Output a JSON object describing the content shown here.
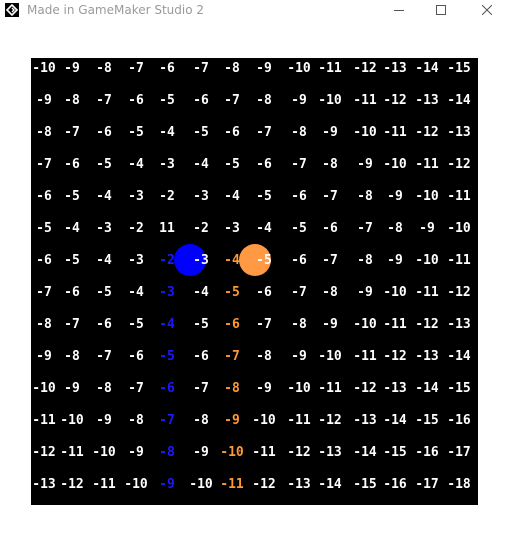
{
  "window": {
    "title": "Made in GameMaker Studio 2",
    "controls": [
      "minimize",
      "maximize",
      "close"
    ]
  },
  "game": {
    "background": "#000000",
    "grid": [
      [
        "-10",
        "-9",
        "-8",
        "-7",
        "-6",
        "-7",
        "-8",
        "-9",
        "-10",
        "-11",
        "-12",
        "-13",
        "-14",
        "-15"
      ],
      [
        "-9",
        "-8",
        "-7",
        "-6",
        "-5",
        "-6",
        "-7",
        "-8",
        "-9",
        "-10",
        "-11",
        "-12",
        "-13",
        "-14"
      ],
      [
        "-8",
        "-7",
        "-6",
        "-5",
        "-4",
        "-5",
        "-6",
        "-7",
        "-8",
        "-9",
        "-10",
        "-11",
        "-12",
        "-13"
      ],
      [
        "-7",
        "-6",
        "-5",
        "-4",
        "-3",
        "-4",
        "-5",
        "-6",
        "-7",
        "-8",
        "-9",
        "-10",
        "-11",
        "-12"
      ],
      [
        "-6",
        "-5",
        "-4",
        "-3",
        "-2",
        "-3",
        "-4",
        "-5",
        "-6",
        "-7",
        "-8",
        "-9",
        "-10",
        "-11"
      ],
      [
        "-5",
        "-4",
        "-3",
        "-2",
        "11",
        "-2",
        "-3",
        "-4",
        "-5",
        "-6",
        "-7",
        "-8",
        "-9",
        "-10"
      ],
      [
        "-6",
        "-5",
        "-4",
        "-3",
        "-2",
        "-3",
        "-4",
        "-5",
        "-6",
        "-7",
        "-8",
        "-9",
        "-10",
        "-11"
      ],
      [
        "-7",
        "-6",
        "-5",
        "-4",
        "-3",
        "-4",
        "-5",
        "-6",
        "-7",
        "-8",
        "-9",
        "-10",
        "-11",
        "-12"
      ],
      [
        "-8",
        "-7",
        "-6",
        "-5",
        "-4",
        "-5",
        "-6",
        "-7",
        "-8",
        "-9",
        "-10",
        "-11",
        "-12",
        "-13"
      ],
      [
        "-9",
        "-8",
        "-7",
        "-6",
        "-5",
        "-6",
        "-7",
        "-8",
        "-9",
        "-10",
        "-11",
        "-12",
        "-13",
        "-14"
      ],
      [
        "-10",
        "-9",
        "-8",
        "-7",
        "-6",
        "-7",
        "-8",
        "-9",
        "-10",
        "-11",
        "-12",
        "-13",
        "-14",
        "-15"
      ],
      [
        "-11",
        "-10",
        "-9",
        "-8",
        "-7",
        "-8",
        "-9",
        "-10",
        "-11",
        "-12",
        "-13",
        "-14",
        "-15",
        "-16"
      ],
      [
        "-12",
        "-11",
        "-10",
        "-9",
        "-8",
        "-9",
        "-10",
        "-11",
        "-12",
        "-13",
        "-14",
        "-15",
        "-16",
        "-17"
      ],
      [
        "-13",
        "-12",
        "-11",
        "-10",
        "-9",
        "-10",
        "-11",
        "-12",
        "-13",
        "-14",
        "-15",
        "-16",
        "-17",
        "-18"
      ]
    ],
    "colors": {
      "default_text": "#ffffff",
      "blue_column_text": "#1a1aff",
      "orange_column_text": "#ff9933",
      "blue_circle": "#0000ff",
      "orange_circle": "#ff9944"
    },
    "blue_column_index": 4,
    "orange_column_index": 6,
    "colored_rows_start": 6,
    "blue_circle_cell": [
      6,
      5
    ],
    "orange_circle_cell": [
      6,
      7
    ]
  }
}
